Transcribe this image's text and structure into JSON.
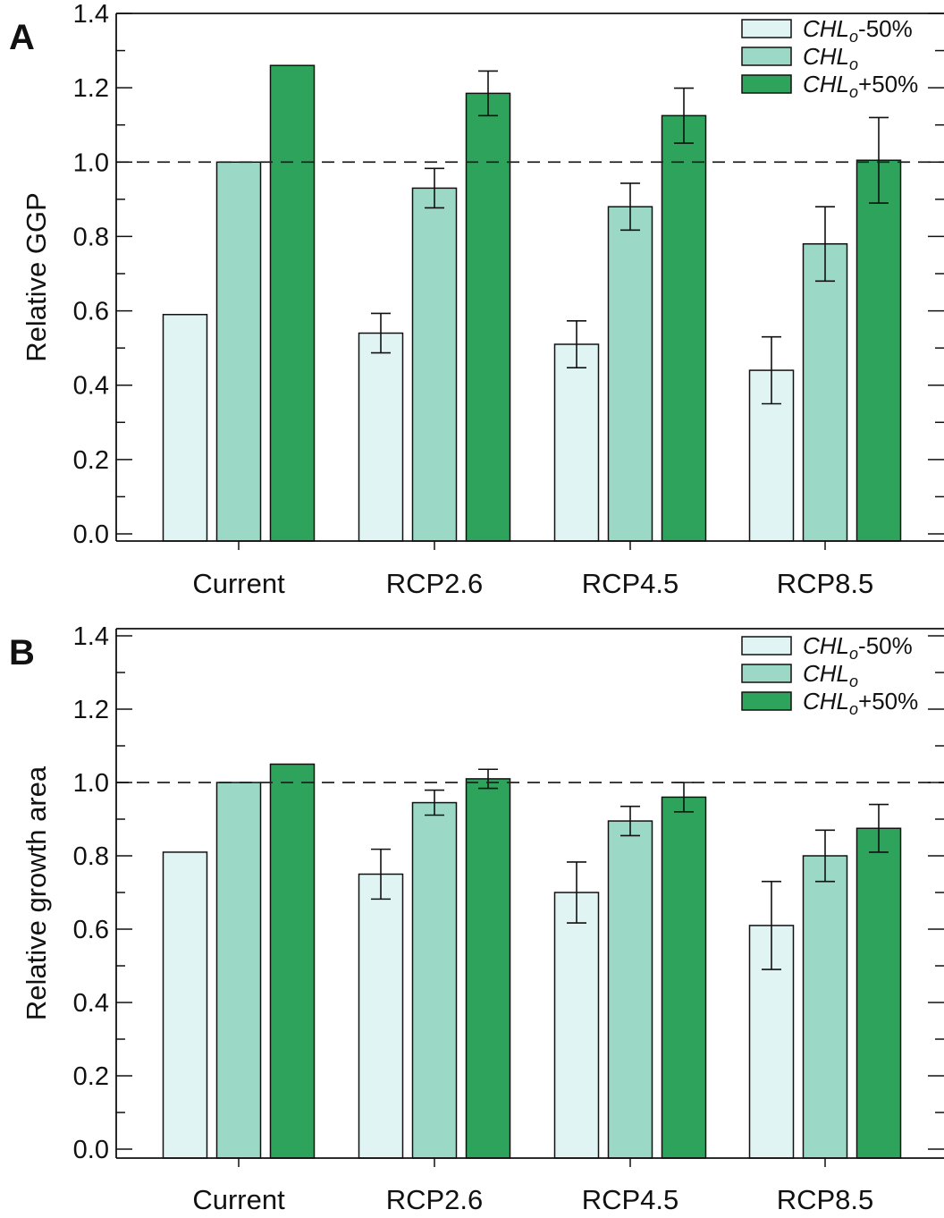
{
  "colors": {
    "chl_minus_50": "#e1f4f4",
    "chl": "#9bd8c6",
    "chl_plus_50": "#2ea35c",
    "edge": "#111111",
    "reference_line": "#222222"
  },
  "chart_data": [
    {
      "type": "bar",
      "panel_label": "A",
      "ylabel": "Relative GGP",
      "xlabel": "",
      "ylim": [
        0,
        1.4
      ],
      "yticks": [
        "0.0",
        "0.2",
        "0.4",
        "0.6",
        "0.8",
        "1.0",
        "1.2",
        "1.4"
      ],
      "reference_line": 1.0,
      "legend_placement": "top-right",
      "categories": [
        "Current",
        "RCP2.6",
        "RCP4.5",
        "RCP8.5"
      ],
      "series": [
        {
          "name": "CHL",
          "legend_sub": "o",
          "legend_suffix": "-50%",
          "color_key": "chl_minus_50",
          "values": [
            0.59,
            0.54,
            0.51,
            0.44
          ],
          "errors": [
            null,
            0.053,
            0.063,
            0.09
          ]
        },
        {
          "name": "CHL",
          "legend_sub": "o",
          "legend_suffix": "",
          "color_key": "chl",
          "values": [
            1.0,
            0.93,
            0.88,
            0.78
          ],
          "errors": [
            null,
            0.053,
            0.063,
            0.1
          ]
        },
        {
          "name": "CHL",
          "legend_sub": "o",
          "legend_suffix": "+50%",
          "color_key": "chl_plus_50",
          "values": [
            1.26,
            1.185,
            1.125,
            1.005
          ],
          "errors": [
            null,
            0.06,
            0.074,
            0.115
          ]
        }
      ]
    },
    {
      "type": "bar",
      "panel_label": "B",
      "ylabel": "Relative growth area",
      "xlabel": "",
      "ylim": [
        0,
        1.4
      ],
      "yticks": [
        "0.0",
        "0.2",
        "0.4",
        "0.6",
        "0.8",
        "1.0",
        "1.2",
        "1.4"
      ],
      "reference_line": 1.0,
      "legend_placement": "top-right",
      "categories": [
        "Current",
        "RCP2.6",
        "RCP4.5",
        "RCP8.5"
      ],
      "series": [
        {
          "name": "CHL",
          "legend_sub": "o",
          "legend_suffix": "-50%",
          "color_key": "chl_minus_50",
          "values": [
            0.81,
            0.75,
            0.7,
            0.61
          ],
          "errors": [
            null,
            0.068,
            0.083,
            0.12
          ]
        },
        {
          "name": "CHL",
          "legend_sub": "o",
          "legend_suffix": "",
          "color_key": "chl",
          "values": [
            1.0,
            0.945,
            0.895,
            0.8
          ],
          "errors": [
            null,
            0.034,
            0.04,
            0.07
          ]
        },
        {
          "name": "CHL",
          "legend_sub": "o",
          "legend_suffix": "+50%",
          "color_key": "chl_plus_50",
          "values": [
            1.05,
            1.01,
            0.96,
            0.875
          ],
          "errors": [
            null,
            0.026,
            0.04,
            0.065
          ]
        }
      ]
    }
  ]
}
